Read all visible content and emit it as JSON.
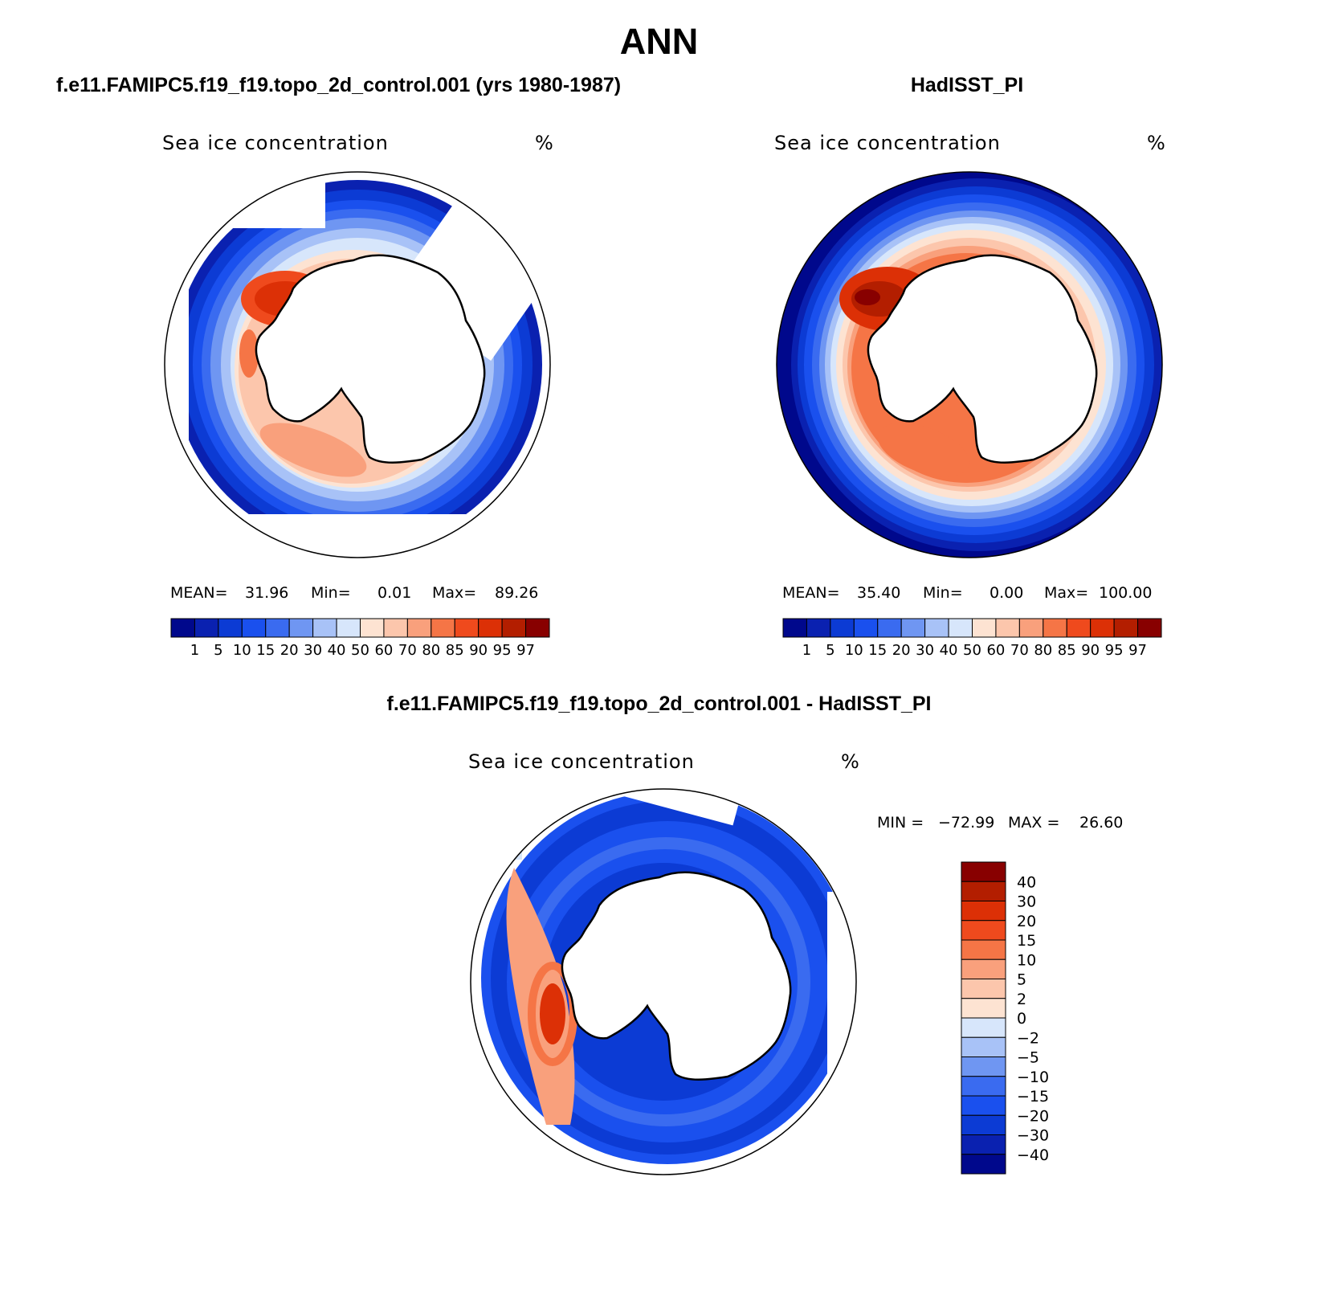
{
  "title": "ANN",
  "panels": [
    {
      "title": "f.e11.FAMIPC5.f19_f19.topo_2d_control.001 (yrs 1980-1987)",
      "variable": "Sea ice concentration",
      "units": "%",
      "stats": {
        "mean_label": "MEAN=",
        "mean": "31.96",
        "min_label": "Min=",
        "min": "0.01",
        "max_label": "Max=",
        "max": "89.26"
      }
    },
    {
      "title": "HadISST_PI",
      "variable": "Sea ice concentration",
      "units": "%",
      "stats": {
        "mean_label": "MEAN=",
        "mean": "35.40",
        "min_label": "Min=",
        "min": "0.00",
        "max_label": "Max=",
        "max": "100.00"
      }
    },
    {
      "title": "f.e11.FAMIPC5.f19_f19.topo_2d_control.001 - HadISST_PI",
      "variable": "Sea ice concentration",
      "units": "%",
      "stats": {
        "min_label": "MIN =",
        "min": "−72.99",
        "max_label": "MAX =",
        "max": "26.60"
      }
    }
  ],
  "chart_data": [
    {
      "type": "heatmap",
      "projection": "south-polar-stereographic",
      "colorbar": {
        "orientation": "horizontal",
        "levels": [
          "1",
          "5",
          "10",
          "15",
          "20",
          "30",
          "40",
          "50",
          "60",
          "70",
          "80",
          "85",
          "90",
          "95",
          "97"
        ],
        "colors": [
          "#00088c",
          "#0a21b0",
          "#0c3bd4",
          "#1a50ee",
          "#3a6bf0",
          "#6f96f2",
          "#a8c2f7",
          "#d7e6fb",
          "#fde3d2",
          "#fcc6ac",
          "#f9a07c",
          "#f57546",
          "#ef4a1d",
          "#dc3006",
          "#b31e00",
          "#880000"
        ]
      }
    },
    {
      "type": "heatmap",
      "projection": "south-polar-stereographic",
      "colorbar": {
        "orientation": "horizontal",
        "levels": [
          "1",
          "5",
          "10",
          "15",
          "20",
          "30",
          "40",
          "50",
          "60",
          "70",
          "80",
          "85",
          "90",
          "95",
          "97"
        ],
        "colors": [
          "#00088c",
          "#0a21b0",
          "#0c3bd4",
          "#1a50ee",
          "#3a6bf0",
          "#6f96f2",
          "#a8c2f7",
          "#d7e6fb",
          "#fde3d2",
          "#fcc6ac",
          "#f9a07c",
          "#f57546",
          "#ef4a1d",
          "#dc3006",
          "#b31e00",
          "#880000"
        ]
      }
    },
    {
      "type": "heatmap",
      "projection": "south-polar-stereographic",
      "colorbar": {
        "orientation": "vertical",
        "levels": [
          "40",
          "30",
          "20",
          "15",
          "10",
          "5",
          "2",
          "0",
          "−2",
          "−5",
          "−10",
          "−15",
          "−20",
          "−30",
          "−40"
        ],
        "colors": [
          "#880000",
          "#b31e00",
          "#dc3006",
          "#ef4a1d",
          "#f57546",
          "#f9a07c",
          "#fcc6ac",
          "#fde3d2",
          "#d7e6fb",
          "#a8c2f7",
          "#6f96f2",
          "#3a6bf0",
          "#1a50ee",
          "#0c3bd4",
          "#0a21b0",
          "#00088c"
        ]
      }
    }
  ]
}
